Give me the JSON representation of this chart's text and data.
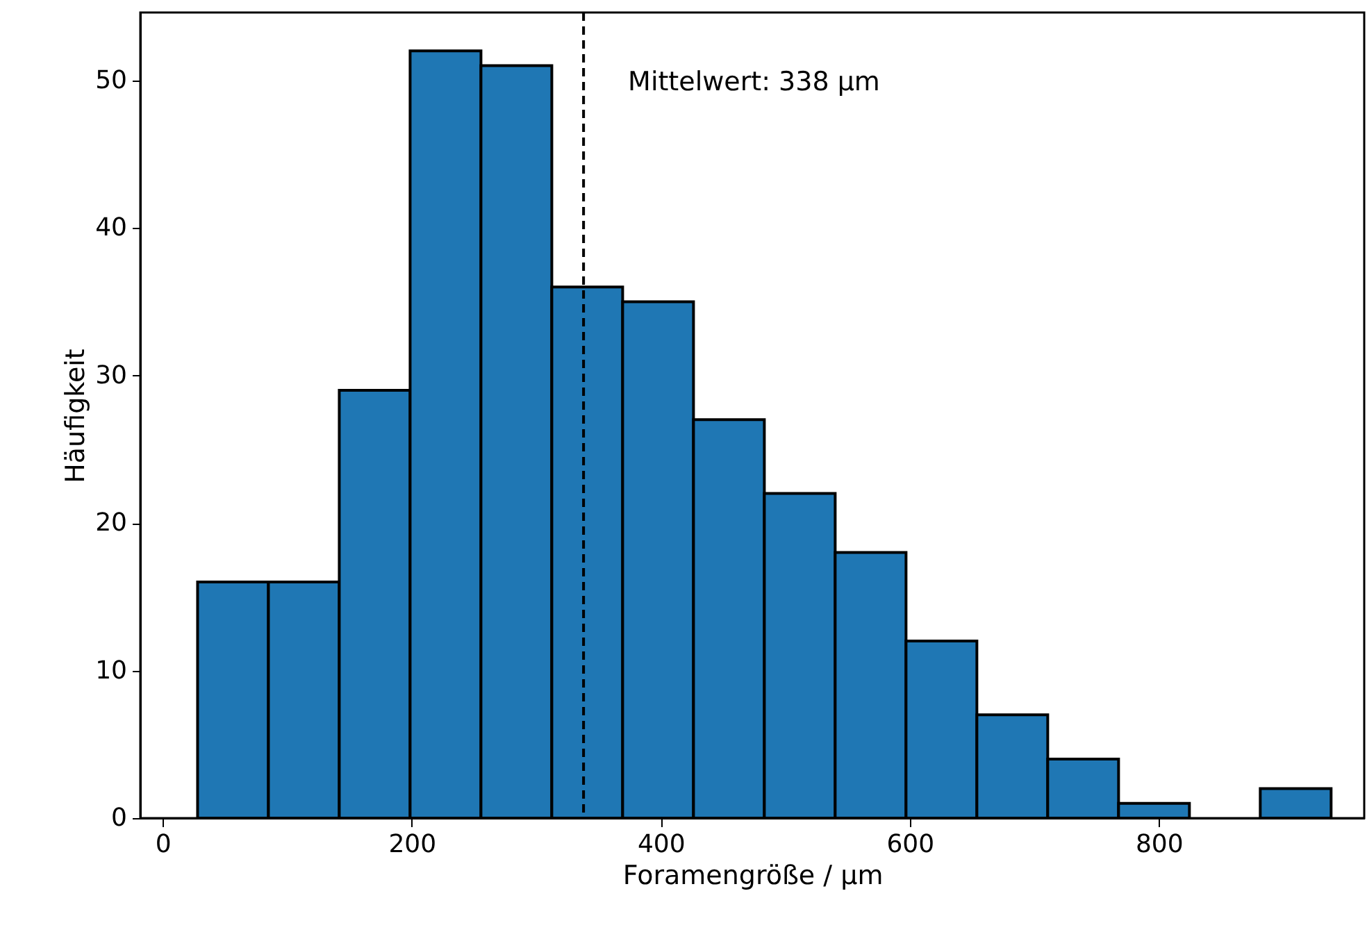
{
  "chart_data": {
    "type": "histogram",
    "xlabel": "Foramengröße / µm",
    "ylabel": "Häufigkeit",
    "bins": [
      28,
      84.9,
      141.8,
      198.7,
      255.6,
      312.5,
      369.4,
      426.3,
      483.2,
      540.1,
      597,
      653.9,
      710.8,
      767.7,
      824.6,
      881.5,
      938.4
    ],
    "values": [
      16,
      16,
      29,
      52,
      51,
      36,
      35,
      27,
      22,
      18,
      12,
      7,
      4,
      1,
      0,
      2
    ],
    "color": "#1f77b4",
    "xlim": [
      -18,
      965
    ],
    "xticks": [
      0,
      200,
      400,
      600,
      800
    ],
    "ylim": [
      0,
      54.6
    ],
    "yticks": [
      0,
      10,
      20,
      30,
      40,
      50
    ],
    "grid": false,
    "ref_lines": [
      {
        "axis": "x",
        "value": 338,
        "label": "Mittelwert: 338 µm",
        "color": "#000000",
        "line_style": "dashed"
      }
    ]
  }
}
